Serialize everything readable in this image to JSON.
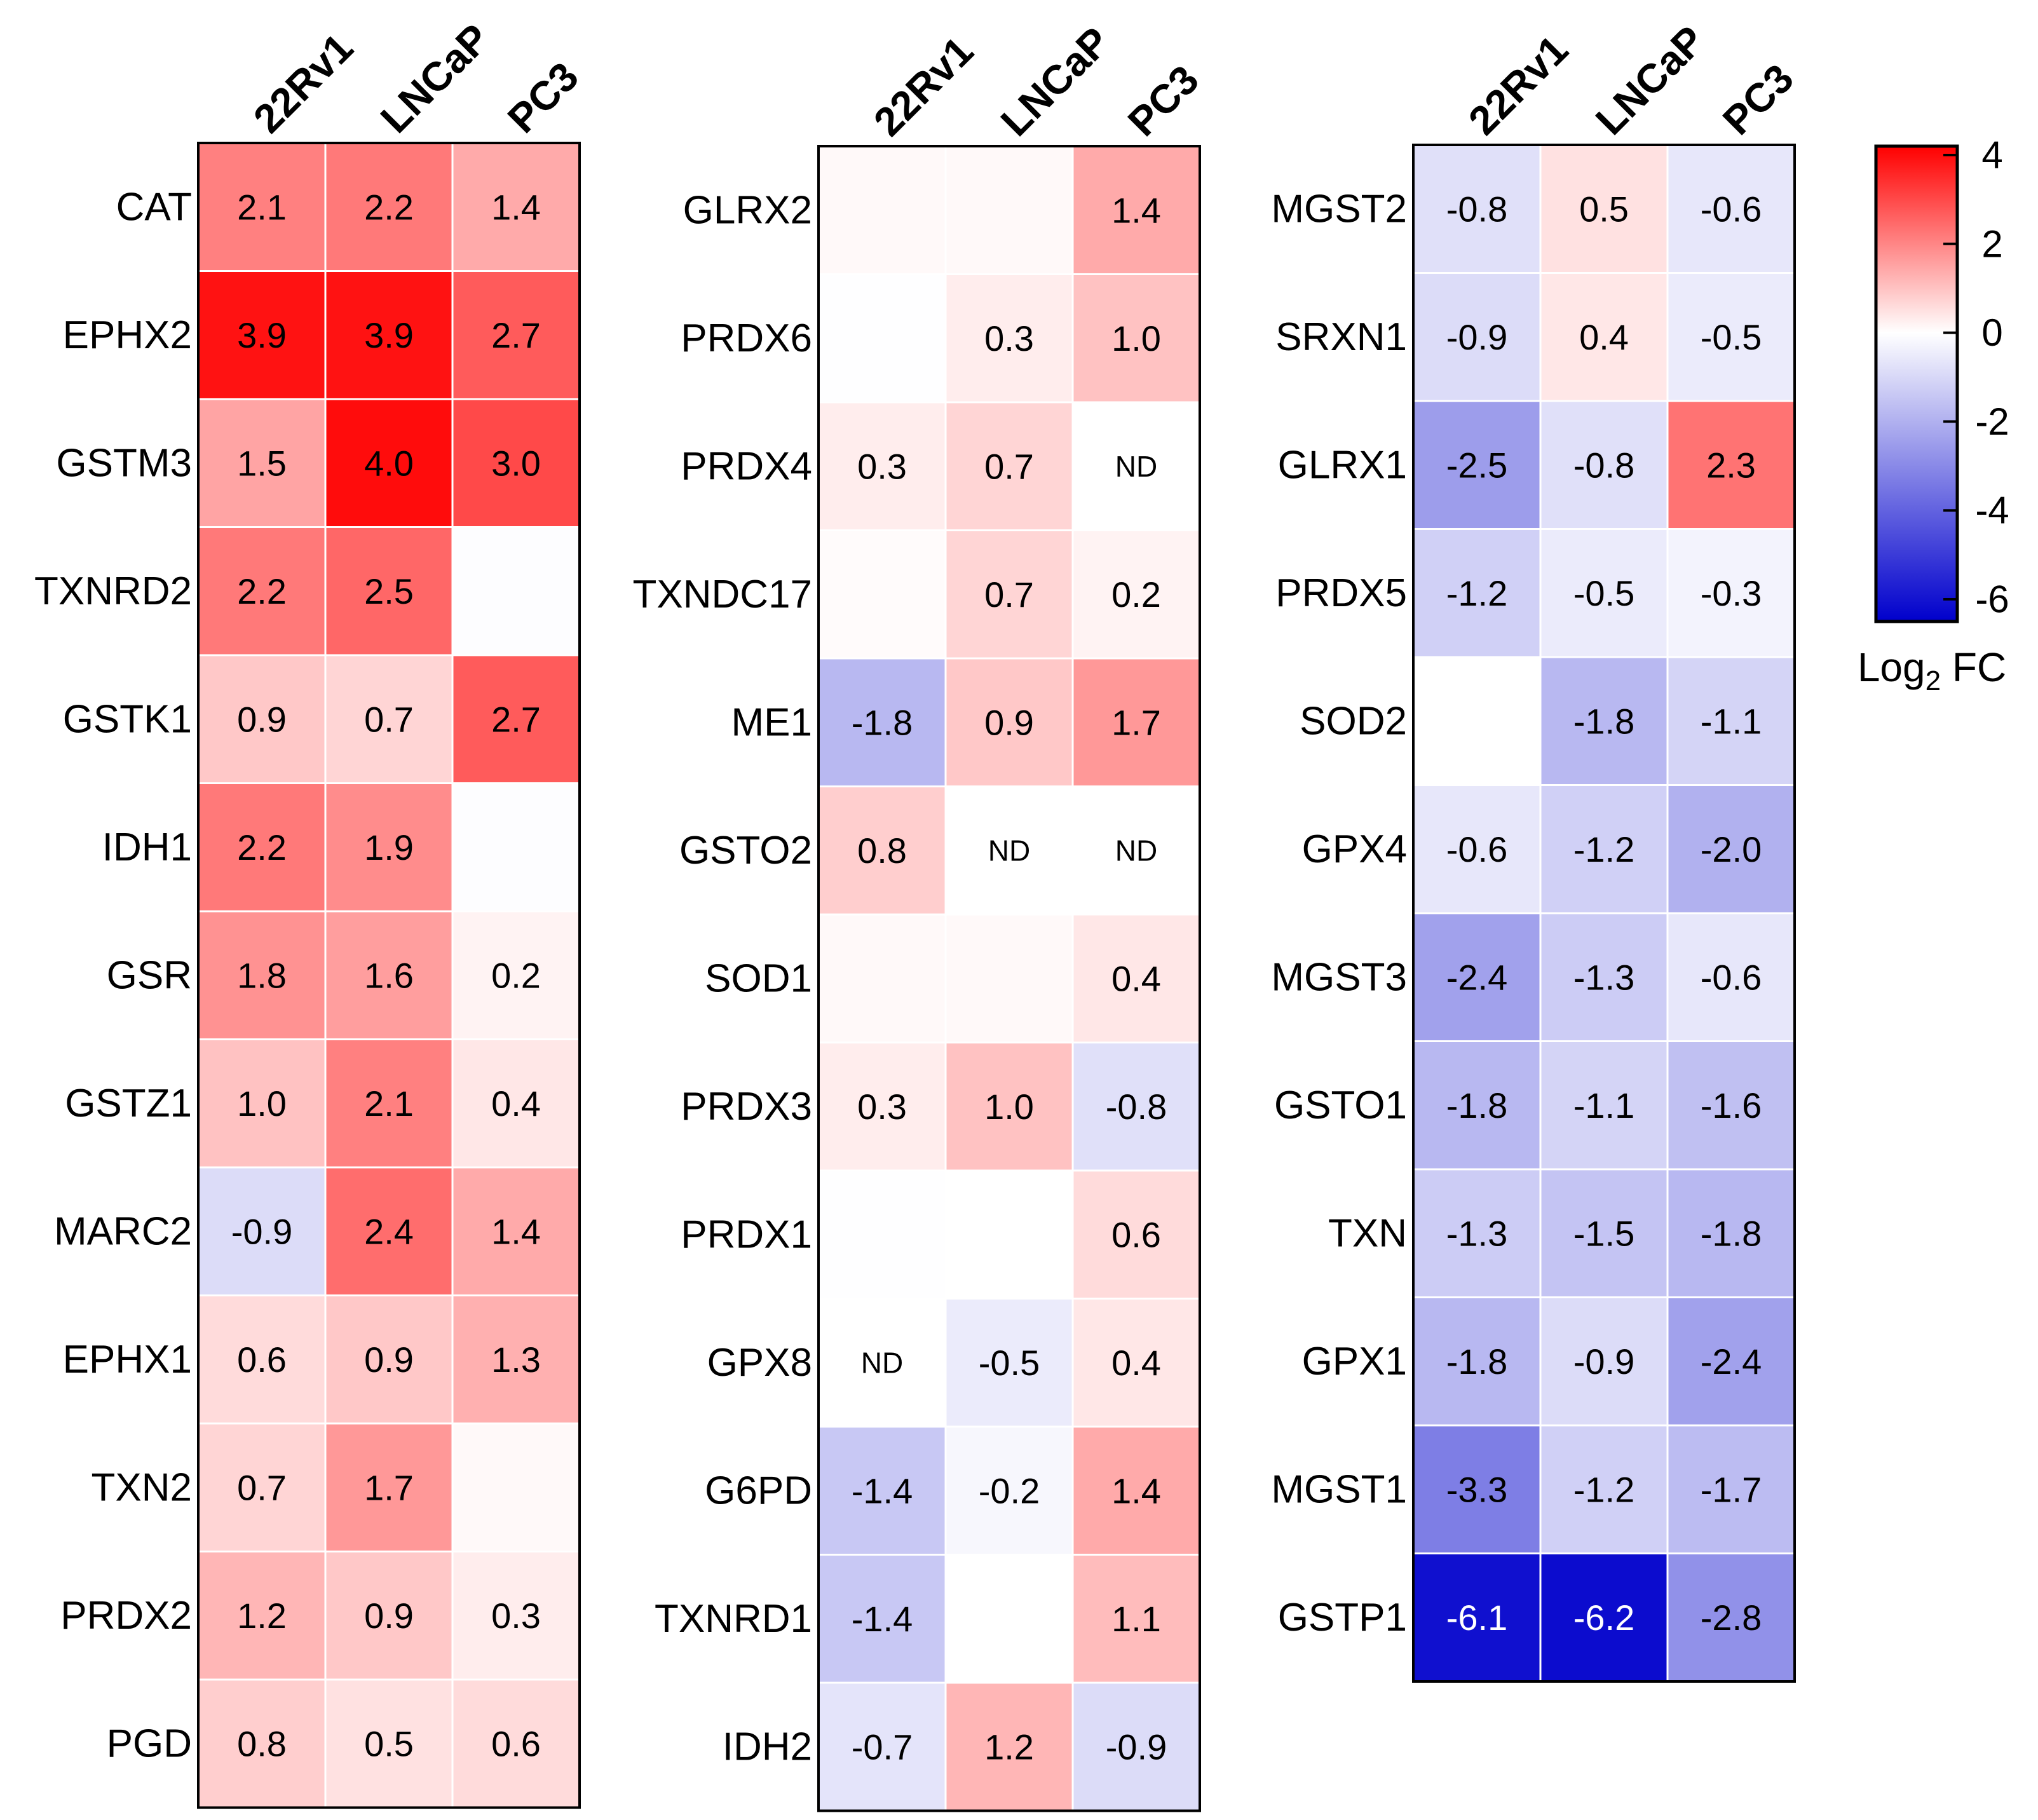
{
  "chart_data": [
    {
      "type": "heatmap",
      "panel": "left",
      "columns": [
        "22Rv1",
        "LNCaP",
        "PC3"
      ],
      "rows": [
        "CAT",
        "EPHX2",
        "GSTM3",
        "TXNRD2",
        "GSTK1",
        "IDH1",
        "GSR",
        "GSTZ1",
        "MARC2",
        "EPHX1",
        "TXN2",
        "PRDX2",
        "PGD"
      ],
      "values": [
        [
          2.1,
          2.2,
          1.4
        ],
        [
          3.9,
          3.9,
          2.7
        ],
        [
          1.5,
          4.0,
          3.0
        ],
        [
          2.2,
          2.5,
          null
        ],
        [
          0.9,
          0.7,
          2.7
        ],
        [
          2.2,
          1.9,
          null
        ],
        [
          1.8,
          1.6,
          0.2
        ],
        [
          1.0,
          2.1,
          0.4
        ],
        [
          -0.9,
          2.4,
          1.4
        ],
        [
          0.6,
          0.9,
          1.3
        ],
        [
          0.7,
          1.7,
          null
        ],
        [
          1.2,
          0.9,
          0.3
        ],
        [
          0.8,
          0.5,
          0.6
        ]
      ],
      "labels": [
        [
          "2.1",
          "2.2",
          "1.4"
        ],
        [
          "3.9",
          "3.9",
          "2.7"
        ],
        [
          "1.5",
          "4.0",
          "3.0"
        ],
        [
          "2.2",
          "2.5",
          ""
        ],
        [
          "0.9",
          "0.7",
          "2.7"
        ],
        [
          "2.2",
          "1.9",
          ""
        ],
        [
          "1.8",
          "1.6",
          "0.2"
        ],
        [
          "1.0",
          "2.1",
          "0.4"
        ],
        [
          "-0.9",
          "2.4",
          "1.4"
        ],
        [
          "0.6",
          "0.9",
          "1.3"
        ],
        [
          "0.7",
          "1.7",
          ""
        ],
        [
          "1.2",
          "0.9",
          "0.3"
        ],
        [
          "0.8",
          "0.5",
          "0.6"
        ]
      ],
      "unlabeled_fill": [
        [
          0,
          0,
          0
        ],
        [
          0,
          0,
          0
        ],
        [
          0,
          0,
          0
        ],
        [
          0,
          0,
          -0.04
        ],
        [
          0,
          0,
          0
        ],
        [
          0,
          0,
          -0.04
        ],
        [
          0,
          0,
          0
        ],
        [
          0,
          0,
          0
        ],
        [
          0,
          0,
          0
        ],
        [
          0,
          0,
          0
        ],
        [
          0,
          0,
          0.1
        ],
        [
          0,
          0,
          0
        ],
        [
          0,
          0,
          0
        ]
      ]
    },
    {
      "type": "heatmap",
      "panel": "middle",
      "columns": [
        "22Rv1",
        "LNCaP",
        "PC3"
      ],
      "rows": [
        "GLRX2",
        "PRDX6",
        "PRDX4",
        "TXNDC17",
        "ME1",
        "GSTO2",
        "SOD1",
        "PRDX3",
        "PRDX1",
        "GPX8",
        "G6PD",
        "TXNRD1",
        "IDH2"
      ],
      "values": [
        [
          null,
          null,
          1.4
        ],
        [
          null,
          0.3,
          1.0
        ],
        [
          0.3,
          0.7,
          null
        ],
        [
          null,
          0.7,
          0.2
        ],
        [
          -1.8,
          0.9,
          1.7
        ],
        [
          0.8,
          null,
          null
        ],
        [
          null,
          null,
          0.4
        ],
        [
          0.3,
          1.0,
          -0.8
        ],
        [
          null,
          null,
          0.6
        ],
        [
          null,
          -0.5,
          0.4
        ],
        [
          -1.4,
          -0.2,
          1.4
        ],
        [
          -1.4,
          null,
          1.1
        ],
        [
          -0.7,
          1.2,
          -0.9
        ]
      ],
      "labels": [
        [
          "",
          "",
          "1.4"
        ],
        [
          "",
          "0.3",
          "1.0"
        ],
        [
          "0.3",
          "0.7",
          "ND"
        ],
        [
          "",
          "0.7",
          "0.2"
        ],
        [
          "-1.8",
          "0.9",
          "1.7"
        ],
        [
          "0.8",
          "ND",
          "ND"
        ],
        [
          "",
          "",
          "0.4"
        ],
        [
          "0.3",
          "1.0",
          "-0.8"
        ],
        [
          "",
          "",
          "0.6"
        ],
        [
          "ND",
          "-0.5",
          "0.4"
        ],
        [
          "-1.4",
          "-0.2",
          "1.4"
        ],
        [
          "-1.4",
          "",
          "1.1"
        ],
        [
          "-0.7",
          "1.2",
          "-0.9"
        ]
      ],
      "unlabeled_fill": [
        [
          0.1,
          0.1,
          0
        ],
        [
          -0.03,
          0,
          0
        ],
        [
          0,
          0,
          0
        ],
        [
          0.06,
          0,
          0
        ],
        [
          0,
          0,
          0
        ],
        [
          0,
          0,
          0
        ],
        [
          0.1,
          0.1,
          0
        ],
        [
          0,
          0,
          0
        ],
        [
          -0.03,
          0,
          0
        ],
        [
          0,
          0,
          0
        ],
        [
          0,
          0,
          0
        ],
        [
          0,
          0,
          0
        ],
        [
          0,
          0,
          0
        ]
      ]
    },
    {
      "type": "heatmap",
      "panel": "right",
      "columns": [
        "22Rv1",
        "LNCaP",
        "PC3"
      ],
      "rows": [
        "MGST2",
        "SRXN1",
        "GLRX1",
        "PRDX5",
        "SOD2",
        "GPX4",
        "MGST3",
        "GSTO1",
        "TXN",
        "GPX1",
        "MGST1",
        "GSTP1"
      ],
      "values": [
        [
          -0.8,
          0.5,
          -0.6
        ],
        [
          -0.9,
          0.4,
          -0.5
        ],
        [
          -2.5,
          -0.8,
          2.3
        ],
        [
          -1.2,
          -0.5,
          -0.3
        ],
        [
          null,
          -1.8,
          -1.1
        ],
        [
          -0.6,
          -1.2,
          -2.0
        ],
        [
          -2.4,
          -1.3,
          -0.6
        ],
        [
          -1.8,
          -1.1,
          -1.6
        ],
        [
          -1.3,
          -1.5,
          -1.8
        ],
        [
          -1.8,
          -0.9,
          -2.4
        ],
        [
          -3.3,
          -1.2,
          -1.7
        ],
        [
          -6.1,
          -6.2,
          -2.8
        ]
      ],
      "labels": [
        [
          "-0.8",
          "0.5",
          "-0.6"
        ],
        [
          "-0.9",
          "0.4",
          "-0.5"
        ],
        [
          "-2.5",
          "-0.8",
          "2.3"
        ],
        [
          "-1.2",
          "-0.5",
          "-0.3"
        ],
        [
          "",
          "-1.8",
          "-1.1"
        ],
        [
          "-0.6",
          "-1.2",
          "-2.0"
        ],
        [
          "-2.4",
          "-1.3",
          "-0.6"
        ],
        [
          "-1.8",
          "-1.1",
          "-1.6"
        ],
        [
          "-1.3",
          "-1.5",
          "-1.8"
        ],
        [
          "-1.8",
          "-0.9",
          "-2.4"
        ],
        [
          "-3.3",
          "-1.2",
          "-1.7"
        ],
        [
          "-6.1",
          "-6.2",
          "-2.8"
        ]
      ],
      "unlabeled_fill": [
        [
          0,
          0,
          0
        ],
        [
          0,
          0,
          0
        ],
        [
          0,
          0,
          0
        ],
        [
          0,
          0,
          0
        ],
        [
          0,
          0,
          0
        ],
        [
          0,
          0,
          0
        ],
        [
          0,
          0,
          0
        ],
        [
          0,
          0,
          0
        ],
        [
          0,
          0,
          0
        ],
        [
          0,
          0,
          0
        ],
        [
          0,
          0,
          0
        ],
        [
          0,
          0,
          0
        ]
      ]
    }
  ],
  "colorbar": {
    "title_main": "Log",
    "title_sub": "2",
    "title_rest": " FC",
    "ticks": [
      "4",
      "2",
      "0",
      "-2",
      "-4",
      "-6"
    ],
    "tick_values": [
      4,
      2,
      0,
      -2,
      -4,
      -6
    ],
    "vmin": -6.5,
    "vmax": 4.2,
    "color_high": "#ff0000",
    "color_mid": "#ffffff",
    "color_low": "#0000cc"
  },
  "colors": {
    "grid_line": "#ffffff",
    "frame": "#000000",
    "text": "#000000",
    "text_on_dark": "#ffffff"
  }
}
